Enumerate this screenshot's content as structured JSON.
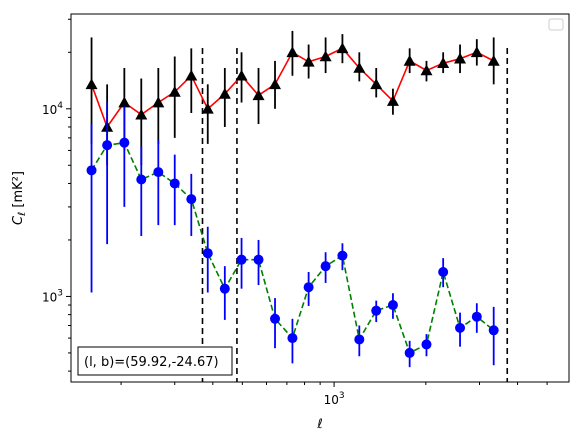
{
  "chart_data": {
    "type": "scatter",
    "xlabel": "ℓ",
    "ylabel": "C_ℓ [mK²]",
    "xscale": "log",
    "yscale": "log",
    "xlim": [
      137,
      5900
    ],
    "ylim": [
      350,
      32000
    ],
    "x_tick_labels": [
      {
        "value": 1000,
        "label": "10",
        "exp": "3"
      }
    ],
    "y_tick_labels": [
      {
        "value": 1000,
        "label": "10",
        "exp": "3"
      },
      {
        "value": 10000,
        "label": "10",
        "exp": "4"
      }
    ],
    "grid": false,
    "legend": {
      "placement": "top-right",
      "entries": []
    },
    "vlines": [
      370,
      480,
      3700
    ],
    "annotation": "(l, b)=(59.92,-24.67)",
    "series": [
      {
        "color": "#000000",
        "line_color": "#ff0000",
        "line_style": "solid",
        "marker": "triangle",
        "points": [
          {
            "x": 160,
            "y": 13500,
            "lo": 6500,
            "hi": 24000
          },
          {
            "x": 180,
            "y": 8000,
            "lo": 5000,
            "hi": 13500
          },
          {
            "x": 205,
            "y": 10800,
            "lo": 6000,
            "hi": 16500
          },
          {
            "x": 233,
            "y": 9300,
            "lo": 5000,
            "hi": 14500
          },
          {
            "x": 265,
            "y": 10800,
            "lo": 6500,
            "hi": 16500
          },
          {
            "x": 300,
            "y": 12300,
            "lo": 7000,
            "hi": 19000
          },
          {
            "x": 340,
            "y": 15000,
            "lo": 9500,
            "hi": 21000
          },
          {
            "x": 385,
            "y": 10000,
            "lo": 6500,
            "hi": 13500
          },
          {
            "x": 438,
            "y": 12000,
            "lo": 8000,
            "hi": 16500
          },
          {
            "x": 497,
            "y": 15000,
            "lo": 10800,
            "hi": 20000
          },
          {
            "x": 565,
            "y": 11800,
            "lo": 8300,
            "hi": 16500
          },
          {
            "x": 640,
            "y": 13500,
            "lo": 10000,
            "hi": 18000
          },
          {
            "x": 730,
            "y": 20000,
            "lo": 15000,
            "hi": 26000
          },
          {
            "x": 825,
            "y": 17800,
            "lo": 14500,
            "hi": 22000
          },
          {
            "x": 938,
            "y": 19000,
            "lo": 15500,
            "hi": 24000
          },
          {
            "x": 1065,
            "y": 21000,
            "lo": 17500,
            "hi": 25000
          },
          {
            "x": 1210,
            "y": 16500,
            "lo": 14000,
            "hi": 20000
          },
          {
            "x": 1375,
            "y": 13500,
            "lo": 11500,
            "hi": 16500
          },
          {
            "x": 1560,
            "y": 11000,
            "lo": 9300,
            "hi": 12800
          },
          {
            "x": 1770,
            "y": 18000,
            "lo": 15500,
            "hi": 21000
          },
          {
            "x": 2010,
            "y": 16000,
            "lo": 14000,
            "hi": 18000
          },
          {
            "x": 2280,
            "y": 17500,
            "lo": 15500,
            "hi": 20000
          },
          {
            "x": 2590,
            "y": 18500,
            "lo": 15500,
            "hi": 22000
          },
          {
            "x": 2940,
            "y": 20000,
            "lo": 17000,
            "hi": 23500
          },
          {
            "x": 3340,
            "y": 18000,
            "lo": 13500,
            "hi": 24000
          }
        ]
      },
      {
        "color": "#0000ff",
        "line_color": "#008000",
        "line_style": "dashed",
        "marker": "circle",
        "points": [
          {
            "x": 160,
            "y": 4700,
            "lo": 1050,
            "hi": 8300
          },
          {
            "x": 180,
            "y": 6400,
            "lo": 1900,
            "hi": 10800
          },
          {
            "x": 205,
            "y": 6600,
            "lo": 3000,
            "hi": 10300
          },
          {
            "x": 233,
            "y": 4200,
            "lo": 2100,
            "hi": 6300
          },
          {
            "x": 265,
            "y": 4600,
            "lo": 2400,
            "hi": 6800
          },
          {
            "x": 300,
            "y": 4000,
            "lo": 2400,
            "hi": 5700
          },
          {
            "x": 340,
            "y": 3300,
            "lo": 2100,
            "hi": 4500
          },
          {
            "x": 385,
            "y": 1700,
            "lo": 1050,
            "hi": 2350
          },
          {
            "x": 438,
            "y": 1100,
            "lo": 750,
            "hi": 1450
          },
          {
            "x": 497,
            "y": 1570,
            "lo": 1100,
            "hi": 2050
          },
          {
            "x": 565,
            "y": 1570,
            "lo": 1150,
            "hi": 2000
          },
          {
            "x": 640,
            "y": 760,
            "lo": 530,
            "hi": 980
          },
          {
            "x": 730,
            "y": 600,
            "lo": 440,
            "hi": 760
          },
          {
            "x": 825,
            "y": 1120,
            "lo": 890,
            "hi": 1350
          },
          {
            "x": 938,
            "y": 1450,
            "lo": 1180,
            "hi": 1720
          },
          {
            "x": 1065,
            "y": 1650,
            "lo": 1380,
            "hi": 1920
          },
          {
            "x": 1210,
            "y": 590,
            "lo": 480,
            "hi": 700
          },
          {
            "x": 1375,
            "y": 840,
            "lo": 730,
            "hi": 950
          },
          {
            "x": 1560,
            "y": 900,
            "lo": 760,
            "hi": 1040
          },
          {
            "x": 1770,
            "y": 500,
            "lo": 420,
            "hi": 580
          },
          {
            "x": 2010,
            "y": 555,
            "lo": 480,
            "hi": 630
          },
          {
            "x": 2280,
            "y": 1350,
            "lo": 1120,
            "hi": 1600
          },
          {
            "x": 2590,
            "y": 680,
            "lo": 540,
            "hi": 820
          },
          {
            "x": 2940,
            "y": 780,
            "lo": 640,
            "hi": 920
          },
          {
            "x": 3340,
            "y": 660,
            "lo": 430,
            "hi": 880
          }
        ]
      }
    ]
  }
}
